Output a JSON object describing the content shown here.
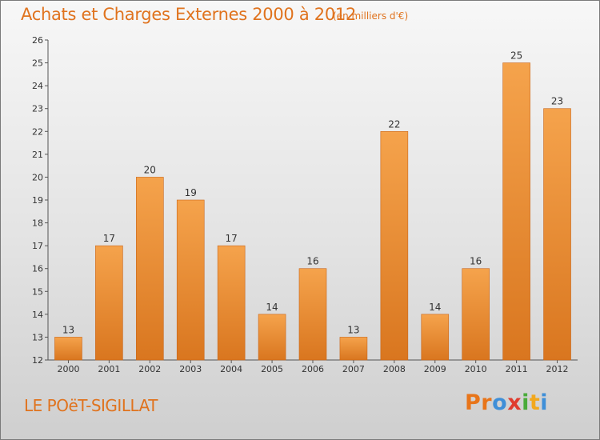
{
  "header": {
    "title": "Achats et Charges Externes 2000 à 2012",
    "subtitle": "(en milliers d'€)"
  },
  "footer": {
    "commune": "LE POëT-SIGILLAT",
    "brand_letters": [
      "P",
      "r",
      "o",
      "x",
      "i",
      "t",
      "i"
    ]
  },
  "colors": {
    "bar_light": "#f5a34c",
    "bar_dark": "#d9761f",
    "title": "#e0731e",
    "brand": [
      "#e8751a",
      "#e8751a",
      "#3f8fd8",
      "#e03c2e",
      "#4aab3a",
      "#f2a81d",
      "#3f8fd8"
    ]
  },
  "chart_data": {
    "type": "bar",
    "title": "Achats et Charges Externes 2000 à 2012",
    "subtitle": "(en milliers d'€)",
    "categories": [
      "2000",
      "2001",
      "2002",
      "2003",
      "2004",
      "2005",
      "2006",
      "2007",
      "2008",
      "2009",
      "2010",
      "2011",
      "2012"
    ],
    "values": [
      13,
      17,
      20,
      19,
      17,
      14,
      16,
      13,
      22,
      14,
      16,
      25,
      23
    ],
    "ylim": [
      12,
      26
    ],
    "yticks": [
      12,
      13,
      14,
      15,
      16,
      17,
      18,
      19,
      20,
      21,
      22,
      23,
      24,
      25,
      26
    ],
    "grid": false,
    "data_labels": true
  }
}
